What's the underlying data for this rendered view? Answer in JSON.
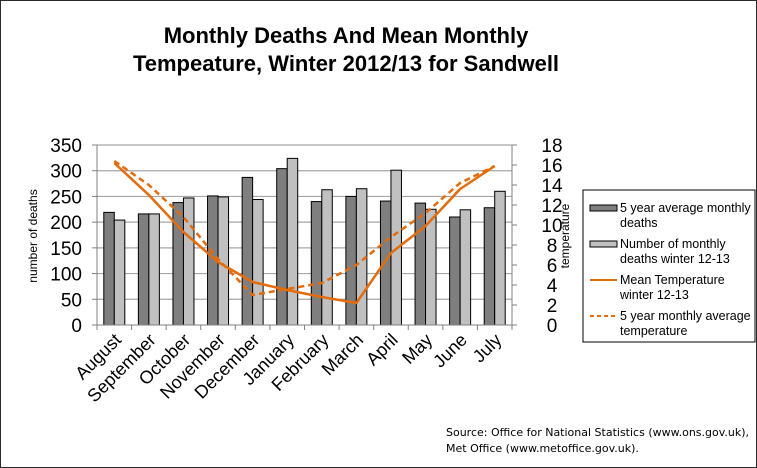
{
  "chart_data": {
    "type": "bar",
    "title_lines": [
      "Monthly Deaths And Mean Monthly",
      "Tempeature, Winter 2012/13 for Sandwell"
    ],
    "categories": [
      "August",
      "September",
      "October",
      "November",
      "December",
      "January",
      "February",
      "March",
      "April",
      "May",
      "June",
      "July"
    ],
    "ylabel": "number of deaths",
    "ylim": [
      0,
      350
    ],
    "yticks": [
      0,
      50,
      100,
      150,
      200,
      250,
      300,
      350
    ],
    "y2label": "temperature",
    "y2lim": [
      0,
      18
    ],
    "y2ticks": [
      0,
      2,
      4,
      6,
      8,
      10,
      12,
      14,
      16,
      18
    ],
    "grid": true,
    "legend_position": "right",
    "series": [
      {
        "name": "5 year average monthly deaths",
        "legend_lines": [
          "5 year average monthly",
          "deaths"
        ],
        "type": "bar",
        "axis": "left",
        "color": "#7f7f7f",
        "values": [
          219,
          216,
          238,
          251,
          287,
          304,
          240,
          250,
          241,
          237,
          210,
          228
        ]
      },
      {
        "name": "Number of monthly deaths winter 12-13",
        "legend_lines": [
          "Number of monthly",
          "deaths winter 12-13"
        ],
        "type": "bar",
        "axis": "left",
        "color": "#c0c0c0",
        "values": [
          204,
          216,
          247,
          249,
          244,
          324,
          263,
          265,
          301,
          225,
          224,
          260
        ]
      },
      {
        "name": "Mean Temperature winter 12-13",
        "legend_lines": [
          "Mean Temperature",
          "winter 12-13"
        ],
        "type": "line",
        "style": "solid",
        "axis": "right",
        "color": "#e46c0a",
        "values": [
          16.2,
          13.0,
          9.3,
          6.3,
          4.3,
          3.5,
          2.8,
          2.2,
          7.2,
          9.9,
          13.6,
          15.9
        ]
      },
      {
        "name": "5 year monthly average temperature",
        "legend_lines": [
          "5 year monthly average",
          "temperature"
        ],
        "type": "line",
        "style": "dashed",
        "axis": "right",
        "color": "#e46c0a",
        "values": [
          16.4,
          14.0,
          10.8,
          6.6,
          3.0,
          3.6,
          4.2,
          6.0,
          8.8,
          11.2,
          14.2,
          15.9
        ]
      }
    ]
  },
  "source_lines": [
    "Source: Office for National Statistics (www.ons.gov.uk),",
    "Met Office (www.metoffice.gov.uk)."
  ]
}
